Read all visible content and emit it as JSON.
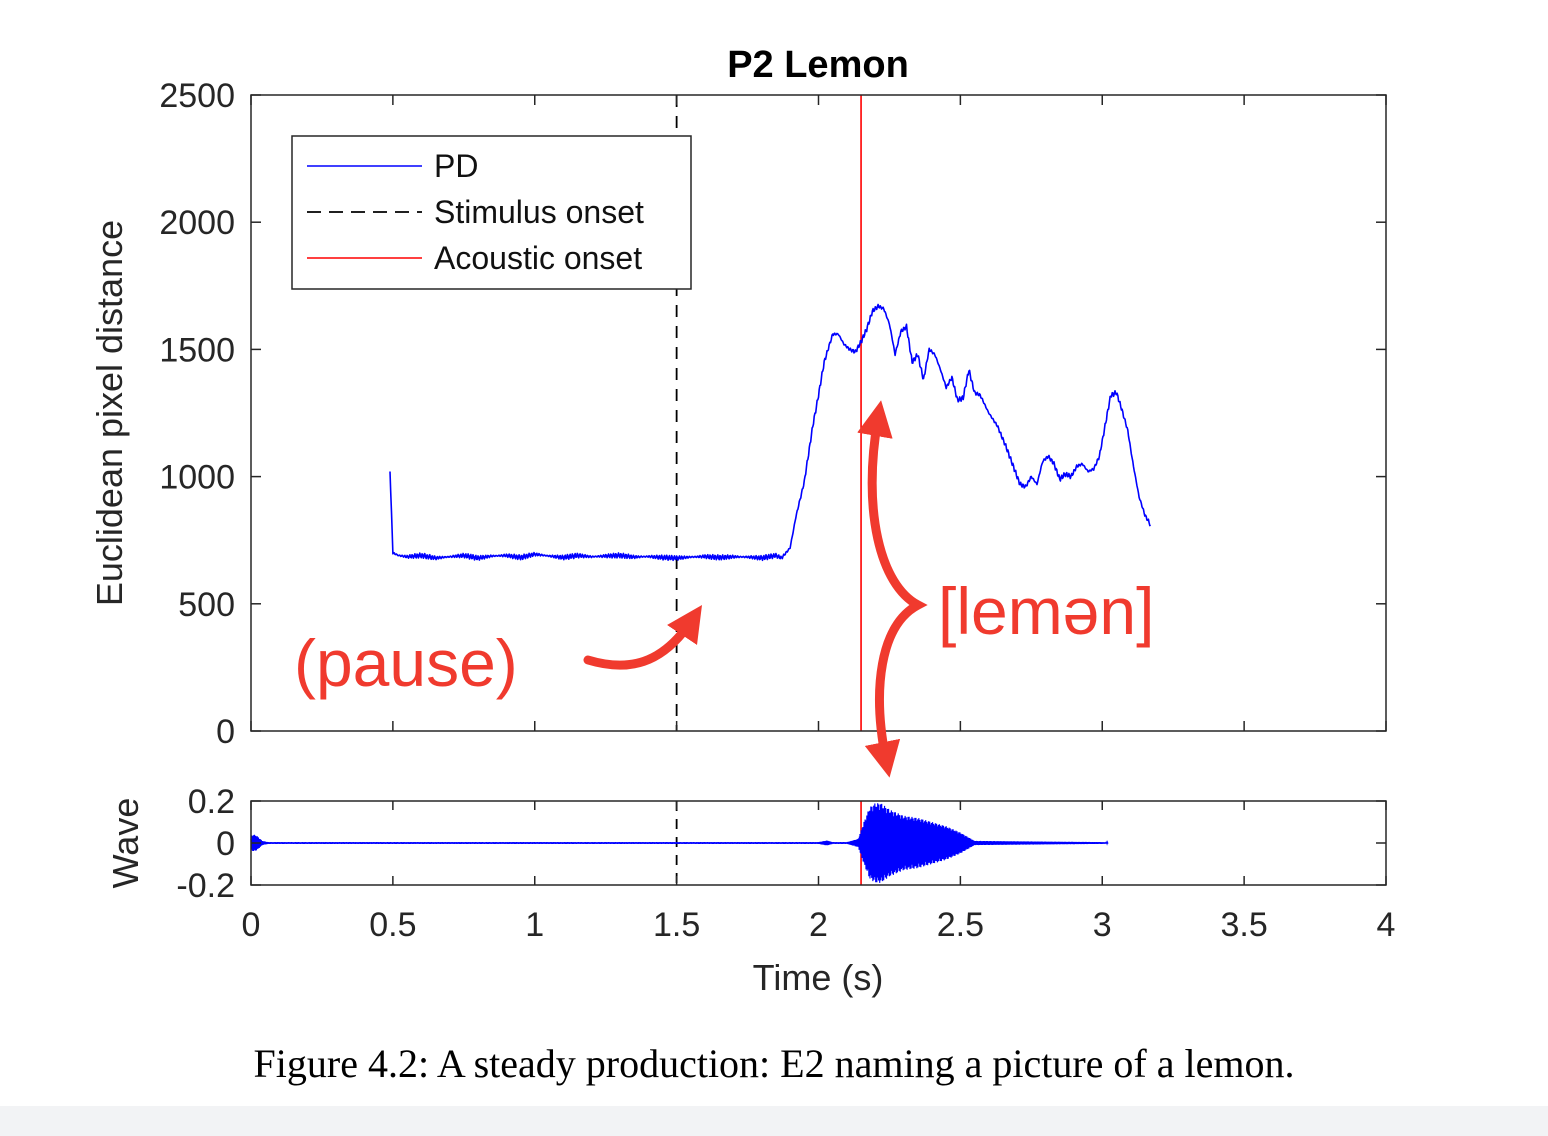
{
  "caption": "Figure 4.2: A steady production: E2 naming a picture of a lemon.",
  "annotations": {
    "pause": "(pause)",
    "word": "[lemən]",
    "color": "#f03a2e"
  },
  "chart_data": [
    {
      "type": "line",
      "title": "P2 Lemon",
      "xlabel": "",
      "ylabel": "Euclidean pixel distance",
      "xlim": [
        0,
        4
      ],
      "ylim": [
        0,
        2500
      ],
      "yticks": [
        0,
        500,
        1000,
        1500,
        2000,
        2500
      ],
      "ytick_labels": [
        "0",
        "500",
        "1000",
        "1500",
        "2000",
        "2500"
      ],
      "legend": {
        "placement": "top-left",
        "entries": [
          {
            "name": "PD",
            "color": "#0000ff",
            "style": "solid"
          },
          {
            "name": "Stimulus onset",
            "color": "#000000",
            "style": "dashed"
          },
          {
            "name": "Acoustic onset",
            "color": "#ff0000",
            "style": "solid"
          }
        ]
      },
      "vlines": [
        {
          "name": "Stimulus onset",
          "x": 1.5,
          "color": "#000000",
          "style": "dashed"
        },
        {
          "name": "Acoustic onset",
          "x": 2.15,
          "color": "#ff0000",
          "style": "solid"
        }
      ],
      "series": [
        {
          "name": "PD",
          "color": "#0000ff",
          "x": [
            0.49,
            0.5,
            0.52,
            0.55,
            0.6,
            0.65,
            0.7,
            0.75,
            0.8,
            0.85,
            0.9,
            0.95,
            1.0,
            1.05,
            1.1,
            1.15,
            1.2,
            1.25,
            1.3,
            1.35,
            1.4,
            1.45,
            1.5,
            1.55,
            1.6,
            1.65,
            1.7,
            1.75,
            1.8,
            1.85,
            1.87,
            1.9,
            1.92,
            1.95,
            1.98,
            2.0,
            2.02,
            2.05,
            2.07,
            2.09,
            2.11,
            2.13,
            2.15,
            2.17,
            2.19,
            2.21,
            2.23,
            2.25,
            2.27,
            2.29,
            2.31,
            2.33,
            2.35,
            2.37,
            2.39,
            2.41,
            2.43,
            2.45,
            2.47,
            2.49,
            2.51,
            2.53,
            2.55,
            2.57,
            2.6,
            2.63,
            2.66,
            2.69,
            2.71,
            2.73,
            2.75,
            2.77,
            2.79,
            2.81,
            2.83,
            2.85,
            2.87,
            2.89,
            2.91,
            2.93,
            2.95,
            2.97,
            2.99,
            3.01,
            3.03,
            3.05,
            3.07,
            3.09,
            3.11,
            3.13,
            3.15,
            3.17
          ],
          "values": [
            1020,
            700,
            690,
            685,
            690,
            680,
            685,
            690,
            680,
            688,
            690,
            682,
            695,
            688,
            682,
            690,
            685,
            688,
            690,
            684,
            686,
            682,
            680,
            684,
            686,
            682,
            685,
            684,
            680,
            690,
            680,
            720,
            840,
            980,
            1200,
            1320,
            1450,
            1560,
            1560,
            1520,
            1500,
            1490,
            1530,
            1580,
            1650,
            1670,
            1660,
            1600,
            1480,
            1570,
            1590,
            1450,
            1480,
            1380,
            1500,
            1480,
            1420,
            1350,
            1390,
            1300,
            1310,
            1420,
            1330,
            1320,
            1250,
            1200,
            1120,
            1030,
            970,
            960,
            1000,
            970,
            1060,
            1080,
            1050,
            990,
            1010,
            1000,
            1040,
            1050,
            1020,
            1030,
            1080,
            1200,
            1320,
            1330,
            1260,
            1180,
            1040,
            920,
            850,
            810
          ]
        }
      ]
    },
    {
      "type": "line",
      "title": "",
      "xlabel": "Time (s)",
      "ylabel": "Wave",
      "xlim": [
        0,
        4
      ],
      "ylim": [
        -0.2,
        0.2
      ],
      "xticks": [
        0,
        0.5,
        1,
        1.5,
        2,
        2.5,
        3,
        3.5,
        4
      ],
      "xtick_labels": [
        "0",
        "0.5",
        "1",
        "1.5",
        "2",
        "2.5",
        "3",
        "3.5",
        "4"
      ],
      "yticks": [
        -0.2,
        0,
        0.2
      ],
      "ytick_labels": [
        "-0.2",
        "0",
        "0.2"
      ],
      "vlines": [
        {
          "name": "Stimulus onset",
          "x": 1.5,
          "color": "#000000",
          "style": "dashed"
        },
        {
          "name": "Acoustic onset",
          "x": 2.15,
          "color": "#ff0000",
          "style": "solid"
        }
      ],
      "series": [
        {
          "name": "Wave",
          "color": "#0000ff",
          "envelope_x": [
            0,
            0.01,
            0.02,
            0.04,
            0.06,
            0.5,
            1.0,
            1.5,
            2.0,
            2.03,
            2.05,
            2.1,
            2.14,
            2.16,
            2.18,
            2.2,
            2.22,
            2.25,
            2.3,
            2.35,
            2.4,
            2.45,
            2.5,
            2.55,
            3.0,
            3.02
          ],
          "envelope": [
            0.035,
            0.04,
            0.035,
            0.01,
            0.004,
            0.004,
            0.004,
            0.004,
            0.004,
            0.012,
            0.004,
            0.004,
            0.02,
            0.1,
            0.17,
            0.19,
            0.19,
            0.16,
            0.13,
            0.12,
            0.1,
            0.08,
            0.05,
            0.01,
            0.004,
            0.003
          ]
        }
      ]
    }
  ]
}
